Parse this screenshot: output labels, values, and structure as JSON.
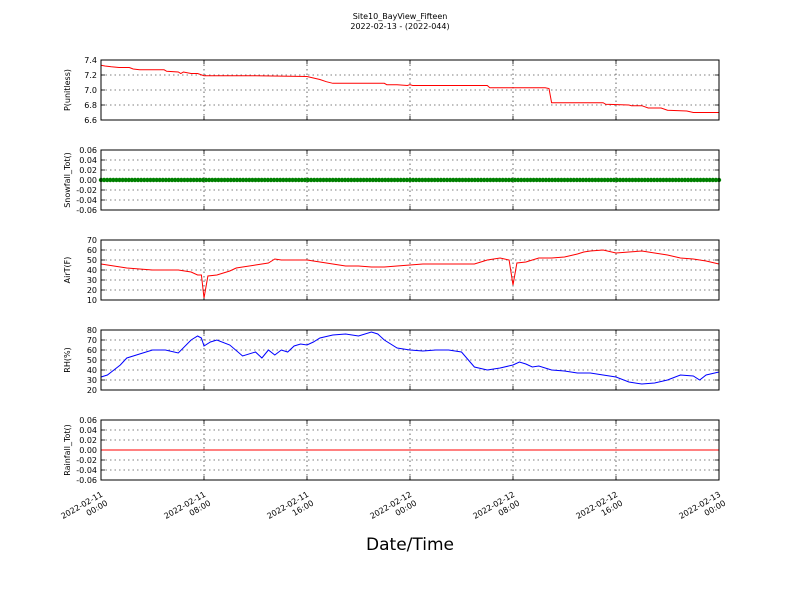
{
  "figure": {
    "title_line1": "Site10_BayView_Fifteen",
    "title_line2": "2022-02-13 - (2022-044)",
    "xlabel": "Date/Time"
  },
  "chart_data": {
    "type": "line",
    "x_axis": {
      "range": [
        "2022-02-11 00:00",
        "2022-02-13 00:00"
      ],
      "ticks": [
        {
          "line1": "2022-02-11",
          "line2": "00:00"
        },
        {
          "line1": "2022-02-11",
          "line2": "08:00"
        },
        {
          "line1": "2022-02-11",
          "line2": "16:00"
        },
        {
          "line1": "2022-02-12",
          "line2": "00:00"
        },
        {
          "line1": "2022-02-12",
          "line2": "08:00"
        },
        {
          "line1": "2022-02-12",
          "line2": "16:00"
        },
        {
          "line1": "2022-02-13",
          "line2": "00:00"
        }
      ],
      "grid": true
    },
    "panels": [
      {
        "id": "pressure",
        "ylabel": "P(unitless)",
        "color": "#ff0000",
        "marker": "line",
        "ylim": [
          6.6,
          7.4
        ],
        "yticks": [
          "6.6",
          "6.8",
          "7.0",
          "7.2",
          "7.4"
        ],
        "ytick_values": [
          6.6,
          6.8,
          7.0,
          7.2,
          7.4
        ],
        "x_hours": [
          0,
          0.3,
          0.8,
          1.4,
          2.2,
          2.5,
          3.0,
          4.0,
          4.9,
          5.1,
          6.0,
          6.2,
          6.4,
          7.0,
          7.5,
          8.0,
          12.0,
          16.0,
          16.5,
          17.0,
          17.5,
          18.0,
          22.0,
          22.2,
          23.0,
          23.8,
          24.0,
          24.2,
          30.0,
          30.2,
          34.5,
          34.8,
          35.0,
          39.0,
          39.2,
          41.0,
          41.2,
          42.0,
          42.5,
          43.5,
          44.0,
          45.5,
          46.0,
          48.0
        ],
        "y": [
          7.33,
          7.32,
          7.31,
          7.3,
          7.3,
          7.28,
          7.27,
          7.27,
          7.27,
          7.25,
          7.24,
          7.22,
          7.24,
          7.22,
          7.22,
          7.19,
          7.19,
          7.18,
          7.16,
          7.14,
          7.11,
          7.09,
          7.09,
          7.07,
          7.07,
          7.06,
          7.07,
          7.06,
          7.06,
          7.03,
          7.03,
          7.02,
          6.83,
          6.83,
          6.81,
          6.8,
          6.79,
          6.79,
          6.76,
          6.76,
          6.73,
          6.72,
          6.7,
          6.7
        ]
      },
      {
        "id": "snowfall",
        "ylabel": "Snowfall_Tot()",
        "color": "#008000",
        "marker": "dots",
        "ylim": [
          -0.06,
          0.06
        ],
        "yticks": [
          "-0.06",
          "-0.04",
          "-0.02",
          "0.00",
          "0.02",
          "0.04",
          "0.06"
        ],
        "ytick_values": [
          -0.06,
          -0.04,
          -0.02,
          0.0,
          0.02,
          0.04,
          0.06
        ],
        "x_hours": [
          0,
          48
        ],
        "y": [
          0.0,
          0.0
        ]
      },
      {
        "id": "airtemp",
        "ylabel": "AirT(F)",
        "color": "#ff0000",
        "marker": "line",
        "ylim": [
          10,
          70
        ],
        "yticks": [
          "10",
          "20",
          "30",
          "40",
          "50",
          "60",
          "70"
        ],
        "ytick_values": [
          10,
          20,
          30,
          40,
          50,
          60,
          70
        ],
        "x_hours": [
          0,
          1,
          2,
          3,
          4,
          5,
          6,
          7,
          7.5,
          7.8,
          8.0,
          8.3,
          9,
          10,
          10.5,
          11,
          12,
          13,
          13.5,
          14,
          14.3,
          15,
          16,
          17,
          18,
          19,
          20,
          21,
          22,
          23,
          24,
          25,
          26,
          27,
          28,
          29,
          30,
          31,
          31.7,
          32.0,
          32.3,
          33,
          33.5,
          34,
          35,
          36,
          37,
          37.5,
          38,
          39,
          40,
          41,
          42,
          43,
          44,
          45,
          46,
          47,
          48
        ],
        "y": [
          46,
          44,
          42,
          41,
          40,
          40,
          40,
          38,
          35,
          35,
          12,
          34,
          35,
          39,
          42,
          43,
          45,
          47,
          51,
          50,
          50,
          50,
          50,
          48,
          46,
          44,
          44,
          43,
          43,
          44,
          45,
          46,
          46,
          46,
          46,
          46,
          50,
          52,
          50,
          25,
          47,
          48,
          50,
          52,
          52,
          53,
          56,
          58,
          59,
          60,
          57,
          58,
          59,
          57,
          55,
          52,
          51,
          49,
          46
        ]
      },
      {
        "id": "rh",
        "ylabel": "RH(%)",
        "color": "#0000ff",
        "marker": "line",
        "ylim": [
          20,
          80
        ],
        "yticks": [
          "20",
          "30",
          "40",
          "50",
          "60",
          "70",
          "80"
        ],
        "ytick_values": [
          20,
          30,
          40,
          50,
          60,
          70,
          80
        ],
        "x_hours": [
          0,
          0.5,
          1,
          1.5,
          2,
          3,
          4,
          5,
          6,
          7,
          7.5,
          7.8,
          8.0,
          8.5,
          9,
          10,
          11,
          12,
          12.5,
          13,
          13.5,
          14,
          14.5,
          15,
          15.5,
          16,
          16.5,
          17,
          18,
          19,
          20,
          21,
          21.5,
          22,
          23,
          24,
          25,
          26,
          27,
          28,
          29,
          30,
          31,
          32,
          32.5,
          33,
          33.5,
          34,
          35,
          36,
          37,
          38,
          39,
          40,
          41,
          42,
          43,
          44,
          45,
          46,
          46.5,
          47,
          48
        ],
        "y": [
          33,
          35,
          40,
          45,
          52,
          56,
          60,
          60,
          57,
          70,
          74,
          72,
          64,
          68,
          70,
          65,
          54,
          58,
          52,
          60,
          55,
          60,
          58,
          64,
          66,
          65,
          68,
          72,
          75,
          76,
          74,
          78,
          76,
          70,
          62,
          60,
          59,
          60,
          60,
          58,
          43,
          40,
          42,
          45,
          48,
          46,
          43,
          44,
          40,
          39,
          37,
          37,
          35,
          33,
          28,
          26,
          27,
          30,
          35,
          34,
          30,
          35,
          38
        ]
      },
      {
        "id": "rainfall",
        "ylabel": "Rainfall_Tot()",
        "color": "#ff0000",
        "marker": "line",
        "ylim": [
          -0.06,
          0.06
        ],
        "yticks": [
          "-0.06",
          "-0.04",
          "-0.02",
          "0.00",
          "0.02",
          "0.04",
          "0.06"
        ],
        "ytick_values": [
          -0.06,
          -0.04,
          -0.02,
          0.0,
          0.02,
          0.04,
          0.06
        ],
        "x_hours": [
          0,
          48
        ],
        "y": [
          0.0,
          0.0
        ]
      }
    ]
  }
}
